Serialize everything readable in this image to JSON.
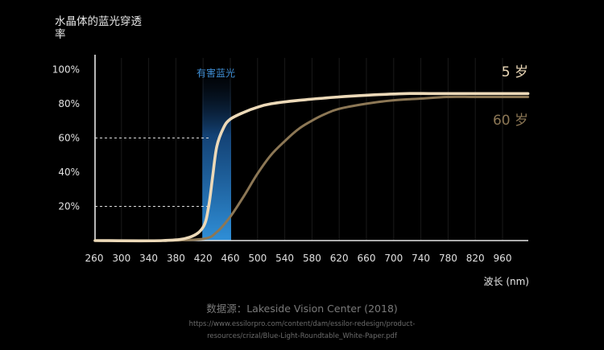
{
  "chart_data": {
    "type": "line",
    "title": "水晶体的蓝光穿透率",
    "xlabel": "波长 (nm)",
    "ylabel": "",
    "categories": [
      "260",
      "300",
      "340",
      "380",
      "420",
      "460",
      "500",
      "540",
      "580",
      "620",
      "660",
      "700",
      "740",
      "780",
      "820",
      "960"
    ],
    "y_ticks": [
      "20%",
      "40%",
      "60%",
      "80%",
      "100%"
    ],
    "ylim": [
      0,
      110
    ],
    "grid": true,
    "highlight_band": {
      "label": "有害蓝光",
      "x_range": [
        "420",
        "460"
      ],
      "color": "#2f8fd8"
    },
    "reference_lines": [
      60,
      20
    ],
    "series": [
      {
        "name": "5 岁",
        "color": "#ecd9b8",
        "points": [
          [
            0,
            0
          ],
          [
            5,
            0
          ],
          [
            7,
            2
          ],
          [
            8,
            8
          ],
          [
            8.4,
            20
          ],
          [
            8.7,
            38
          ],
          [
            9,
            55
          ],
          [
            9.5,
            66
          ],
          [
            10,
            71
          ],
          [
            11,
            75
          ],
          [
            12,
            78
          ],
          [
            13,
            80
          ],
          [
            15,
            82
          ],
          [
            18,
            84
          ],
          [
            20,
            85
          ],
          [
            23,
            86
          ],
          [
            25,
            86
          ],
          [
            28,
            86
          ],
          [
            30,
            86
          ],
          [
            32,
            86
          ]
        ]
      },
      {
        "name": "60 岁",
        "color": "#8c7755",
        "points": [
          [
            0,
            0
          ],
          [
            5,
            0
          ],
          [
            8,
            1
          ],
          [
            9,
            5
          ],
          [
            10,
            14
          ],
          [
            11,
            26
          ],
          [
            12,
            39
          ],
          [
            13,
            50
          ],
          [
            14,
            58
          ],
          [
            15,
            65
          ],
          [
            16,
            70
          ],
          [
            17,
            74
          ],
          [
            18,
            77
          ],
          [
            20,
            80
          ],
          [
            22,
            82
          ],
          [
            24,
            83
          ],
          [
            26,
            84
          ],
          [
            28,
            84
          ],
          [
            30,
            84
          ],
          [
            32,
            84
          ]
        ]
      }
    ]
  },
  "footer": {
    "source": "数据源：Lakeside Vision Center (2018)",
    "url_line1": "https://www.essilorpro.com/content/dam/essilor-redesign/product-",
    "url_line2": "resources/crizal/Blue-Light-Roundtable_White-Paper.pdf"
  }
}
